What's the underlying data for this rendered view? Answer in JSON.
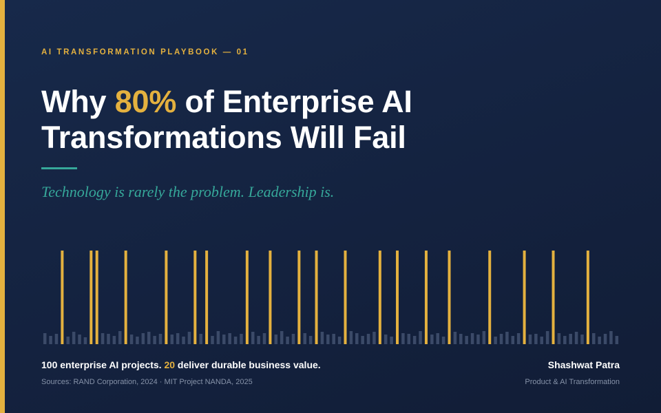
{
  "eyebrow": "AI TRANSFORMATION PLAYBOOK — 01",
  "title": {
    "line1_prefix": "Why ",
    "line1_highlight": "80%",
    "line1_suffix": " of Enterprise AI",
    "line2": "Transformations Will Fail"
  },
  "subtitle": "Technology is rarely the problem. Leadership is.",
  "caption": {
    "prefix": "100 enterprise AI projects. ",
    "highlight": "20",
    "suffix": " deliver durable business value."
  },
  "sources": "Sources: RAND Corporation, 2024 · MIT Project NANDA, 2025",
  "author": {
    "name": "Shashwat Patra",
    "role": "Product & AI Transformation"
  },
  "colors": {
    "gold": "#e4b13f",
    "teal": "#36a89a",
    "muted_bar": "#3b4a68",
    "muted_text": "#8692a8"
  },
  "chart_data": {
    "type": "bar",
    "total": 100,
    "successful_indices": [
      3,
      8,
      9,
      14,
      21,
      26,
      28,
      35,
      39,
      44,
      47,
      52,
      58,
      61,
      66,
      70,
      77,
      83,
      88,
      94
    ],
    "failed_heights": [
      0.12,
      0.09,
      0.11,
      0.08,
      0.13,
      0.1,
      0.07,
      0.12,
      0.11,
      0.09,
      0.14,
      0.1,
      0.08,
      0.12,
      0.13,
      0.09,
      0.11,
      0.1,
      0.12,
      0.08,
      0.13,
      0.11,
      0.09,
      0.14,
      0.1,
      0.12,
      0.08,
      0.11,
      0.13,
      0.09,
      0.12,
      0.1,
      0.14,
      0.08,
      0.11,
      0.12,
      0.09,
      0.13,
      0.1,
      0.11,
      0.08,
      0.14,
      0.12,
      0.09,
      0.11,
      0.13,
      0.1,
      0.08,
      0.12,
      0.11,
      0.09,
      0.14,
      0.1,
      0.12,
      0.08,
      0.13,
      0.11,
      0.09,
      0.12,
      0.1,
      0.14,
      0.08,
      0.11,
      0.13,
      0.09,
      0.12,
      0.1,
      0.11,
      0.08,
      0.14,
      0.12,
      0.09,
      0.11,
      0.13,
      0.1,
      0.12,
      0.08,
      0.11,
      0.14,
      0.09
    ],
    "success_height": 1.0
  }
}
